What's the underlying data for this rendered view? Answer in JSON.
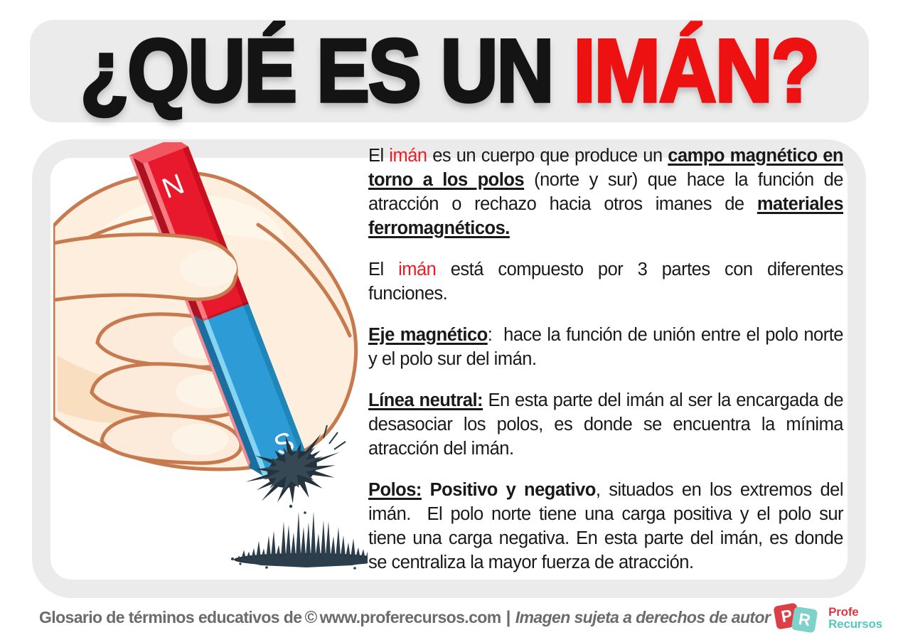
{
  "header": {
    "title_black": "¿QUÉ ES UN ",
    "title_red": "IMÁN?"
  },
  "colors": {
    "title_red": "#ee1111",
    "body_red": "#ed1c24",
    "panel_gray": "#ebebeb",
    "magnet_red_front": "#e8192c",
    "magnet_red_side": "#ad1220",
    "magnet_red_top": "#f25660",
    "magnet_blue_front": "#2d9bd5",
    "magnet_blue_side": "#1a6f9f",
    "magnet_blue_stripe": "#85d4f1",
    "skin": "#fdeedd",
    "skin_outline": "#c67a4e",
    "filings_dark": "#24333e",
    "filings_mid": "#2c3e4b",
    "footer_gray": "#6b6b6b",
    "logo_red": "#dc4046",
    "logo_teal": "#7fd2c9"
  },
  "illustration": {
    "north_label": "N",
    "south_label": "S"
  },
  "article": {
    "paragraphs": [
      {
        "segments": [
          {
            "t": "El ",
            "s": "n"
          },
          {
            "t": "imán",
            "s": "red"
          },
          {
            "t": " es un cuerpo que produce un ",
            "s": "n"
          },
          {
            "t": "campo magnético en torno a los polos",
            "s": "bu"
          },
          {
            "t": " (norte y sur) que hace la función de atracción o rechazo hacia otros imanes de ",
            "s": "n"
          },
          {
            "t": "materiales ferromagnéticos. ",
            "s": "bu"
          }
        ]
      },
      {
        "segments": [
          {
            "t": "El ",
            "s": "n"
          },
          {
            "t": "imán",
            "s": "red"
          },
          {
            "t": " está compuesto por 3 partes con diferentes funciones.",
            "s": "n"
          }
        ]
      },
      {
        "segments": [
          {
            "t": "Eje magnético",
            "s": "bu"
          },
          {
            "t": ":  hace la función de unión entre el polo norte y el polo sur del imán.",
            "s": "n"
          }
        ]
      },
      {
        "segments": [
          {
            "t": "Línea neutral:",
            "s": "bu"
          },
          {
            "t": " En esta parte del imán al ser la encargada de desasociar los polos, es donde se encuentra la mínima atracción del imán.",
            "s": "n"
          }
        ]
      },
      {
        "segments": [
          {
            "t": "Polos:",
            "s": "bu"
          },
          {
            "t": " ",
            "s": "n"
          },
          {
            "t": "Positivo y negativo",
            "s": "b"
          },
          {
            "t": ", situados en los extremos del imán.  El polo norte tiene una carga positiva y el polo sur tiene una carga negativa. En esta parte del imán, es donde se centraliza la mayor fuerza de atracción.",
            "s": "n"
          }
        ]
      }
    ]
  },
  "footer": {
    "prefix": "Glosario de términos educativos de",
    "copyright_symbol": "©",
    "site": "www.proferecursos.com",
    "separator": "|",
    "rights": "Imagen sujeta a derechos de autor",
    "logo": {
      "p": "P",
      "r": "R",
      "line1": "Profe",
      "line2": "Recursos"
    }
  }
}
